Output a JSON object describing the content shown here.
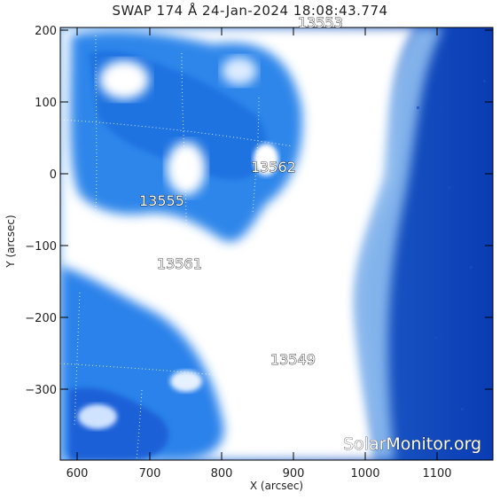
{
  "title": "SWAP 174 Å 24-Jan-2024 18:08:43.774",
  "xlabel": "X (arcsec)",
  "ylabel": "Y (arcsec)",
  "x_ticks": [
    "600",
    "700",
    "800",
    "900",
    "1000",
    "1100"
  ],
  "y_ticks": [
    "200",
    "100",
    "0",
    "−100",
    "−200",
    "−300"
  ],
  "active_regions": [
    "13553",
    "13562",
    "13555",
    "13561",
    "13549"
  ],
  "watermark": "SolarMonitor.org",
  "colors": {
    "sun_bright": "#ffffff",
    "corona": "#3f8fe6",
    "space": "#0b3db5",
    "frame": "#000000"
  }
}
